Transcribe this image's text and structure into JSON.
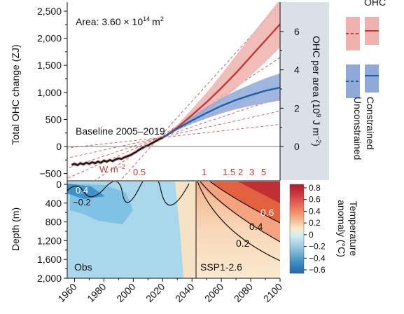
{
  "colors": {
    "red": "#c0393b",
    "red_band": "#eeb1ad",
    "blue": "#1f5fa8",
    "blue_band": "#8fa9d8",
    "grey_panel": "#dadfe8",
    "cool": "#a9d8ec",
    "warm": "#f5e2c5",
    "obs_black": "#1a1a1a"
  },
  "chart_data": [
    {
      "type": "line",
      "panel": "ohc",
      "annotation": "Area: 3.60 × 10",
      "annotation_exp": "14",
      "annotation_unit": "m",
      "annotation_unit_exp": "2",
      "baseline_label": "Baseline 2005–2019",
      "ylabel": "Total OHC change (ZJ)",
      "ylim": [
        -600,
        2600
      ],
      "yticks": [
        "−500",
        "0",
        "500",
        "1,000",
        "1,500",
        "2,000",
        "2,500"
      ],
      "ytick_values": [
        -500,
        0,
        500,
        1000,
        1500,
        2000,
        2500
      ],
      "y2label_prefix": "OHC per area (10",
      "y2label_exp": "9",
      "y2label_mid": " J m",
      "y2label_exp2": "−2",
      "y2label_suffix": ")",
      "y2ticks": [
        "0",
        "2",
        "4",
        "6"
      ],
      "flux_label": "W m",
      "flux_label_exp": "−2",
      "flux_values": [
        "0.5",
        "1",
        "1.5",
        "2",
        "3",
        "5"
      ],
      "flux_rates": [
        0.5,
        1,
        1.5,
        2,
        3,
        5
      ],
      "legend_title": "OHC",
      "legend_entries": [
        "Constrained",
        "Unconstrained"
      ],
      "series": [
        {
          "name": "Obs",
          "x": [
            1958,
            1960,
            1962,
            1964,
            1966,
            1968,
            1970,
            1972,
            1974,
            1976,
            1978,
            1980,
            1982,
            1984,
            1986,
            1988,
            1990,
            1992,
            1994,
            1996,
            1998,
            2000,
            2002,
            2004,
            2006,
            2008,
            2010,
            2012,
            2014,
            2016,
            2018,
            2020
          ],
          "values": [
            -340,
            -320,
            -345,
            -310,
            -330,
            -300,
            -320,
            -290,
            -310,
            -280,
            -300,
            -260,
            -280,
            -250,
            -270,
            -240,
            -220,
            -230,
            -200,
            -180,
            -160,
            -130,
            -100,
            -60,
            -30,
            0,
            20,
            50,
            80,
            110,
            140,
            160
          ]
        },
        {
          "name": "SSP1-2.6 red",
          "x": [
            2020,
            2030,
            2040,
            2050,
            2060,
            2070,
            2080,
            2090,
            2100
          ],
          "values": [
            160,
            350,
            580,
            820,
            1080,
            1360,
            1660,
            1960,
            2260
          ],
          "lower": [
            160,
            300,
            470,
            650,
            850,
            1070,
            1310,
            1560,
            1830
          ],
          "upper": [
            160,
            400,
            690,
            1000,
            1330,
            1680,
            2040,
            2380,
            2720
          ]
        },
        {
          "name": "SSP1-2.6 blue",
          "x": [
            2020,
            2030,
            2040,
            2050,
            2060,
            2070,
            2080,
            2090,
            2100
          ],
          "values": [
            160,
            330,
            480,
            620,
            750,
            860,
            950,
            1030,
            1090
          ],
          "lower": [
            160,
            300,
            420,
            520,
            610,
            690,
            750,
            800,
            850
          ],
          "upper": [
            160,
            365,
            555,
            730,
            890,
            1030,
            1150,
            1260,
            1350
          ]
        }
      ],
      "x": [
        1955,
        2100
      ]
    },
    {
      "type": "heatmap",
      "panel": "depth",
      "ylabel": "Depth (m)",
      "yticks": [
        "0",
        "400",
        "800",
        "1,200",
        "1,600",
        "2,000"
      ],
      "ytick_values": [
        0,
        400,
        800,
        1200,
        1600,
        2000
      ],
      "xticks": [
        "1960",
        "1980",
        "2000",
        "2020",
        "2040",
        "2060",
        "2080",
        "2100"
      ],
      "xtick_values": [
        1960,
        1980,
        2000,
        2020,
        2040,
        2060,
        2080,
        2100
      ],
      "xlim": [
        1955,
        2100
      ],
      "ylim": [
        0,
        2000
      ],
      "obs_label": "Obs",
      "ssp_label": "SSP1-2.6",
      "contour_labels": [
        "0.4",
        "−0.2",
        "0.6",
        "0.4",
        "0.2"
      ],
      "colorbar_label": "Temperature anomaly (°C)",
      "colorbar_ticks": [
        "0.8",
        "0.6",
        "0.4",
        "0.2",
        "0",
        "−0.2",
        "−0.4",
        "−0.6"
      ],
      "colorbar_values": [
        0.8,
        0.6,
        0.4,
        0.2,
        0,
        -0.2,
        -0.4,
        -0.6
      ]
    }
  ]
}
